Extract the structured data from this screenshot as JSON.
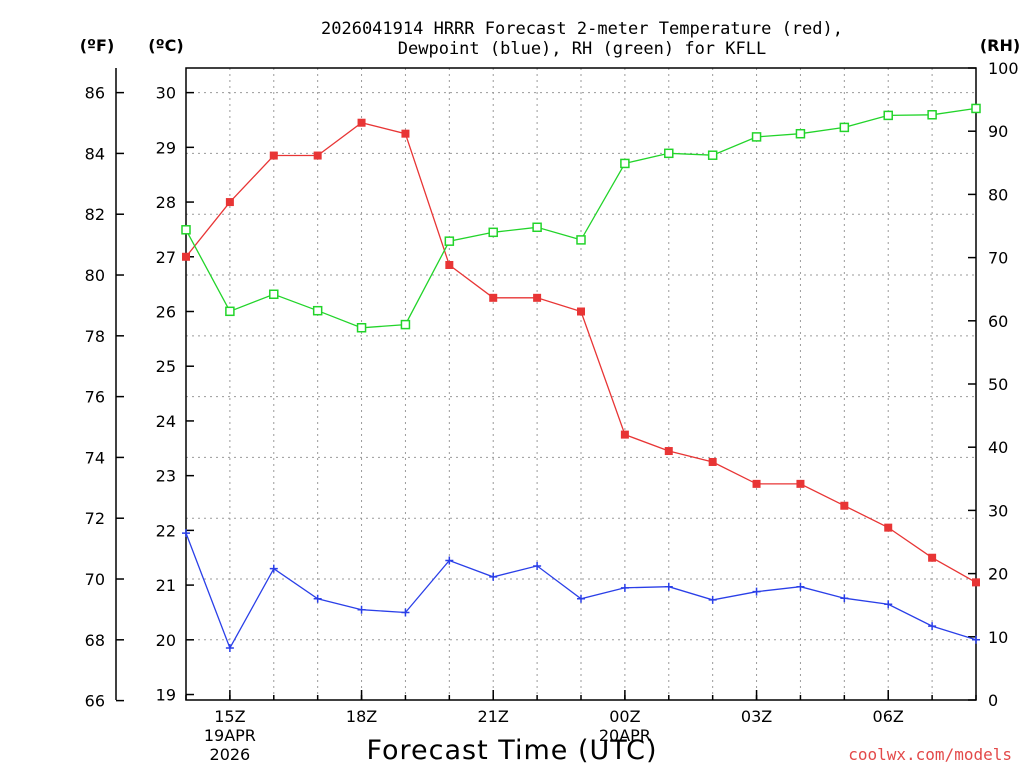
{
  "chart_data": {
    "type": "line",
    "title_line1": "2026041914 HRRR Forecast 2-meter Temperature (red),",
    "title_line2": "Dewpoint (blue), RH (green) for KFLL",
    "xlabel": "Forecast Time (UTC)",
    "credit": "coolwx.com/models",
    "unit_f": "(ºF)",
    "unit_c": "(ºC)",
    "unit_rh": "(RH)",
    "x": [
      14,
      15,
      16,
      17,
      18,
      19,
      20,
      21,
      22,
      23,
      24,
      25,
      26,
      27,
      28,
      29,
      30,
      31,
      32
    ],
    "xlim": [
      14,
      32
    ],
    "x_ticks": [
      {
        "x": 15,
        "lines": [
          "15Z",
          "19APR",
          "2026"
        ]
      },
      {
        "x": 18,
        "lines": [
          "18Z"
        ]
      },
      {
        "x": 21,
        "lines": [
          "21Z"
        ]
      },
      {
        "x": 24,
        "lines": [
          "00Z",
          "20APR"
        ]
      },
      {
        "x": 27,
        "lines": [
          "03Z"
        ]
      },
      {
        "x": 30,
        "lines": [
          "06Z"
        ]
      }
    ],
    "celsius_axis": {
      "range": [
        18.9,
        30.45
      ],
      "ticks": [
        19,
        20,
        21,
        22,
        23,
        24,
        25,
        26,
        27,
        28,
        29,
        30
      ]
    },
    "fahrenheit_ticks": [
      66,
      68,
      70,
      72,
      74,
      76,
      78,
      80,
      82,
      84,
      86
    ],
    "rh_axis": {
      "range": [
        0,
        100
      ],
      "ticks": [
        0,
        10,
        20,
        30,
        40,
        50,
        60,
        70,
        80,
        90,
        100
      ]
    },
    "series": [
      {
        "name": "2-meter Temperature",
        "unit": "C",
        "color": "#e83535",
        "marker": "filled-square",
        "values": [
          27.0,
          28.0,
          28.85,
          28.85,
          29.45,
          29.25,
          26.85,
          26.25,
          26.25,
          26.0,
          23.75,
          23.45,
          23.25,
          22.85,
          22.85,
          22.45,
          22.05,
          21.5,
          21.05
        ]
      },
      {
        "name": "Dewpoint",
        "unit": "C",
        "color": "#2a3fe8",
        "marker": "plus",
        "values": [
          21.95,
          19.85,
          21.3,
          20.75,
          20.55,
          20.5,
          21.45,
          21.15,
          21.35,
          20.75,
          20.95,
          20.97,
          20.73,
          20.88,
          20.97,
          20.76,
          20.65,
          20.25,
          20.0
        ]
      },
      {
        "name": "RH",
        "unit": "%",
        "color": "#22d42a",
        "marker": "open-square",
        "values": [
          74.4,
          61.5,
          64.2,
          61.6,
          58.9,
          59.4,
          72.6,
          74.0,
          74.8,
          72.8,
          84.9,
          86.5,
          86.2,
          89.1,
          89.6,
          90.6,
          92.5,
          92.6,
          93.6
        ]
      }
    ]
  }
}
